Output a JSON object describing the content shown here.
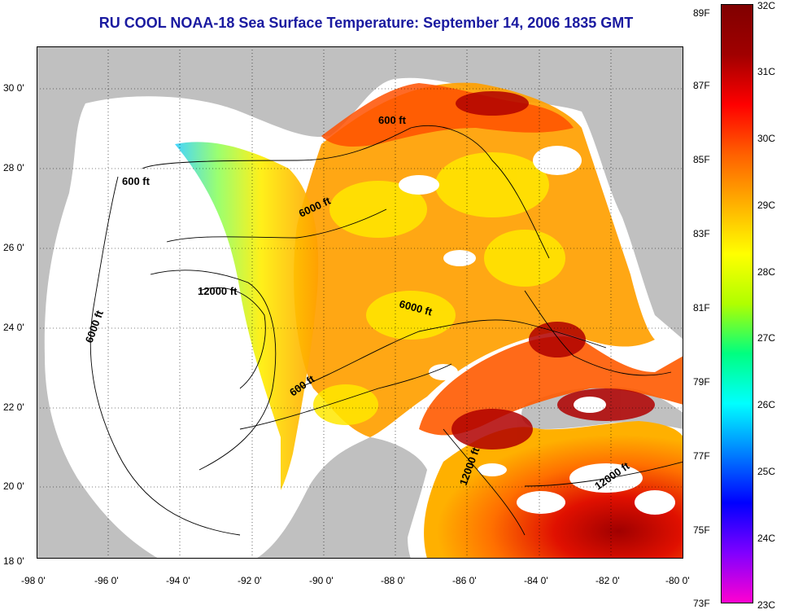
{
  "title": "RU COOL  NOAA-18  Sea Surface Temperature:  September 14, 2006 1835 GMT",
  "map": {
    "lon_ticks": [
      "-98 0'",
      "-96 0'",
      "-94 0'",
      "-92 0'",
      "-90 0'",
      "-88 0'",
      "-86 0'",
      "-84 0'",
      "-82 0'",
      "-80 0'"
    ],
    "lat_ticks": [
      "30 0'",
      "28 0'",
      "26 0'",
      "24 0'",
      "22 0'",
      "20 0'",
      "18 0'"
    ],
    "contour_labels": [
      "600 ft",
      "600 ft",
      "6000 ft",
      "12000 ft",
      "6000 ft",
      "6000 ft",
      "600 ft",
      "12000 ft",
      "12000 ft"
    ]
  },
  "colorbar": {
    "fahrenheit": [
      "89F",
      "87F",
      "85F",
      "83F",
      "81F",
      "79F",
      "77F",
      "75F",
      "73F"
    ],
    "celsius": [
      "32C",
      "31C",
      "30C",
      "29C",
      "28C",
      "27C",
      "26C",
      "25C",
      "24C",
      "23C"
    ],
    "colors": [
      "#ff00d0",
      "#8000ff",
      "#0000ff",
      "#0080ff",
      "#00ffff",
      "#00ff80",
      "#b0ff00",
      "#ffff00",
      "#ffb000",
      "#ff6000",
      "#ff0000",
      "#a00000",
      "#800000"
    ]
  },
  "colors": {
    "land": "#c0c0c0",
    "title": "#1a1aa0",
    "clouds": "#ffffff"
  }
}
